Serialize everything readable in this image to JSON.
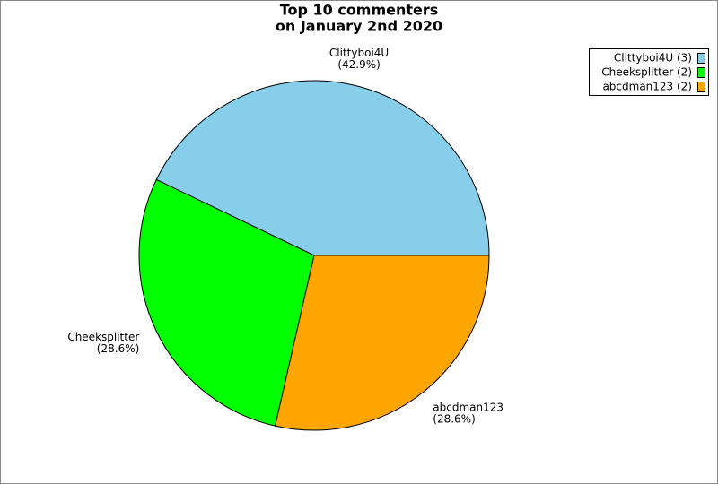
{
  "chart_data": {
    "type": "pie",
    "title": [
      "Top 10 commenters",
      "on January 2nd 2020"
    ],
    "categories": [
      "Clittyboi4U",
      "Cheeksplitter",
      "abcdman123"
    ],
    "values": [
      42.9,
      28.6,
      28.6
    ],
    "value_labels": [
      "(42.9%)",
      "(28.6%)",
      "(28.6%)"
    ],
    "colors": [
      "#87ceeb",
      "#00ff00",
      "#ffa500"
    ],
    "legend": {
      "labels": [
        "Clittyboi4U (3)",
        "Cheeksplitter (2)",
        "abcdman123 (2)"
      ],
      "position": "upper right"
    }
  }
}
